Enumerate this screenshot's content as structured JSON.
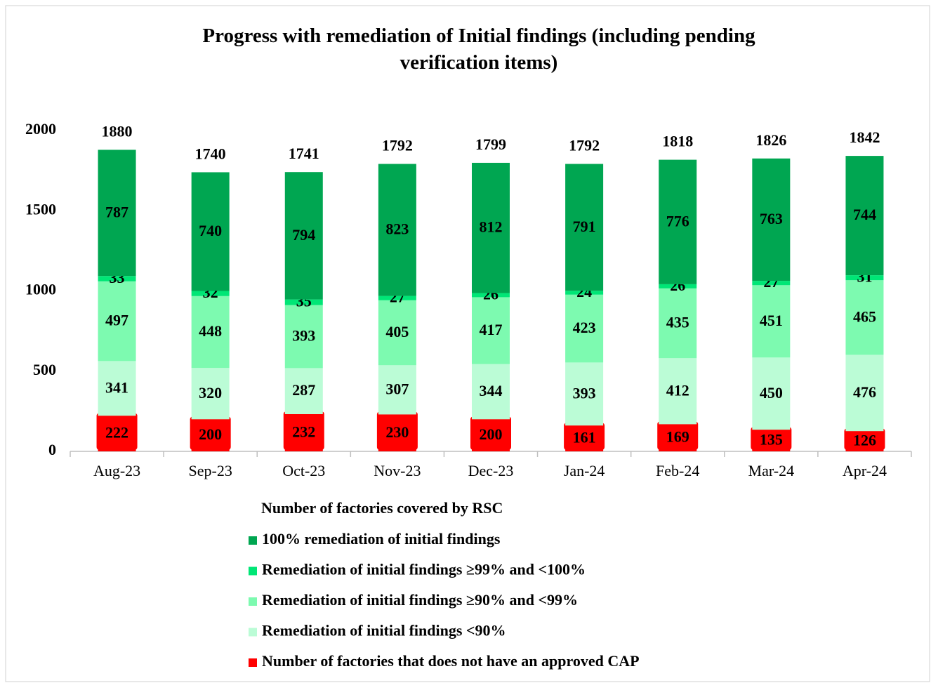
{
  "chart_data": {
    "type": "stacked_bar",
    "title": "Progress with remediation of Initial findings (including pending verification items)",
    "categories": [
      "Aug-23",
      "Sep-23",
      "Oct-23",
      "Nov-23",
      "Dec-23",
      "Jan-24",
      "Feb-24",
      "Mar-24",
      "Apr-24"
    ],
    "legend_title": "Number of factories covered by RSC",
    "series": [
      {
        "name": "100% remediation of initial findings",
        "color": "#00a651",
        "values": [
          787,
          740,
          794,
          823,
          812,
          791,
          776,
          763,
          744
        ]
      },
      {
        "name": "Remediation of initial findings ≥99% and <100%",
        "color": "#00e676",
        "values": [
          33,
          32,
          35,
          27,
          26,
          24,
          26,
          27,
          31
        ]
      },
      {
        "name": "Remediation of initial findings ≥90% and <99%",
        "color": "#7dfab0",
        "values": [
          497,
          448,
          393,
          405,
          417,
          423,
          435,
          451,
          465
        ]
      },
      {
        "name": "Remediation of initial findings <90%",
        "color": "#bbfcd6",
        "values": [
          341,
          320,
          287,
          307,
          344,
          393,
          412,
          450,
          476
        ]
      },
      {
        "name": "Number of factories that does not have an approved CAP",
        "color": "#ff0000",
        "values": [
          222,
          200,
          232,
          230,
          200,
          161,
          169,
          135,
          126
        ]
      }
    ],
    "totals": [
      1880,
      1740,
      1741,
      1792,
      1799,
      1792,
      1818,
      1826,
      1842
    ],
    "ylim": [
      0,
      2000
    ],
    "yticks": [
      0,
      500,
      1000,
      1500,
      2000
    ],
    "grid": false,
    "legend": "bottom"
  }
}
